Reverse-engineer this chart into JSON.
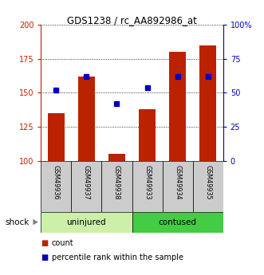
{
  "title": "GDS1238 / rc_AA892986_at",
  "samples": [
    "GSM49936",
    "GSM49937",
    "GSM49938",
    "GSM49933",
    "GSM49934",
    "GSM49935"
  ],
  "group_labels": [
    "uninjured",
    "contused"
  ],
  "counts": [
    135,
    162,
    105,
    138,
    180,
    185
  ],
  "percentiles": [
    52,
    62,
    42,
    54,
    62,
    62
  ],
  "ylim_left": [
    100,
    200
  ],
  "ylim_right": [
    0,
    100
  ],
  "yticks_left": [
    100,
    125,
    150,
    175,
    200
  ],
  "yticks_right": [
    0,
    25,
    50,
    75,
    100
  ],
  "yticklabels_right": [
    "0",
    "25",
    "50",
    "75",
    "100%"
  ],
  "bar_color": "#bb2200",
  "marker_color": "#0000bb",
  "bar_width": 0.55,
  "legend_count": "count",
  "legend_percentile": "percentile rank within the sample",
  "uninjured_color": "#ccf0aa",
  "contused_color": "#44cc44",
  "sample_cell_color": "#cccccc"
}
